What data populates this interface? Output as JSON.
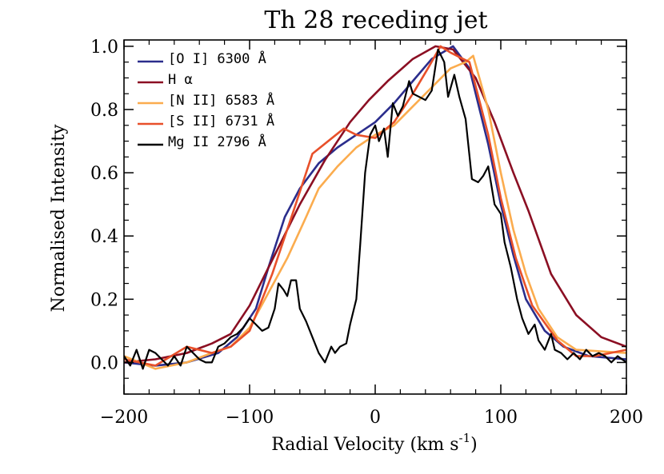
{
  "chart_data": {
    "type": "line",
    "title": "Th 28 receding jet",
    "xlabel": "Radial Velocity (km s",
    "xlabel_sup": "-1",
    "xlabel_close": ")",
    "ylabel": "Normalised Intensity",
    "xlim": [
      -200,
      200
    ],
    "ylim": [
      -0.1,
      1.02
    ],
    "xticks": [
      -200,
      -100,
      0,
      100,
      200
    ],
    "xtick_labels": [
      "−200",
      "−100",
      "0",
      "100",
      "200"
    ],
    "yticks": [
      0.0,
      0.2,
      0.4,
      0.6,
      0.8,
      1.0
    ],
    "ytick_labels": [
      "0.0",
      "0.2",
      "0.4",
      "0.6",
      "0.8",
      "1.0"
    ],
    "grid": false,
    "legend_position": "top-left",
    "series": [
      {
        "name": "[O I] 6300 Å",
        "color": "#2b2d8c",
        "points": [
          [
            -200,
            0.0
          ],
          [
            -175,
            -0.01
          ],
          [
            -150,
            0.0
          ],
          [
            -125,
            0.03
          ],
          [
            -110,
            0.08
          ],
          [
            -95,
            0.17
          ],
          [
            -85,
            0.3
          ],
          [
            -72,
            0.46
          ],
          [
            -60,
            0.55
          ],
          [
            -45,
            0.63
          ],
          [
            -30,
            0.68
          ],
          [
            -15,
            0.72
          ],
          [
            0,
            0.76
          ],
          [
            15,
            0.82
          ],
          [
            30,
            0.89
          ],
          [
            45,
            0.96
          ],
          [
            62,
            1.0
          ],
          [
            75,
            0.93
          ],
          [
            90,
            0.69
          ],
          [
            100,
            0.5
          ],
          [
            110,
            0.34
          ],
          [
            120,
            0.2
          ],
          [
            135,
            0.1
          ],
          [
            150,
            0.05
          ],
          [
            170,
            0.02
          ],
          [
            200,
            0.01
          ]
        ]
      },
      {
        "name": "H α",
        "color": "#8b0f23",
        "points": [
          [
            -200,
            0.0
          ],
          [
            -175,
            0.01
          ],
          [
            -150,
            0.03
          ],
          [
            -130,
            0.06
          ],
          [
            -115,
            0.09
          ],
          [
            -100,
            0.18
          ],
          [
            -80,
            0.34
          ],
          [
            -60,
            0.5
          ],
          [
            -40,
            0.64
          ],
          [
            -20,
            0.76
          ],
          [
            -5,
            0.83
          ],
          [
            10,
            0.89
          ],
          [
            30,
            0.96
          ],
          [
            48,
            1.0
          ],
          [
            62,
            0.99
          ],
          [
            80,
            0.9
          ],
          [
            95,
            0.76
          ],
          [
            110,
            0.6
          ],
          [
            122,
            0.48
          ],
          [
            140,
            0.28
          ],
          [
            160,
            0.15
          ],
          [
            180,
            0.08
          ],
          [
            200,
            0.05
          ]
        ]
      },
      {
        "name": "[N II] 6583 Å",
        "color": "#fbac4e",
        "points": [
          [
            -200,
            0.02
          ],
          [
            -175,
            -0.02
          ],
          [
            -150,
            0.0
          ],
          [
            -130,
            0.03
          ],
          [
            -115,
            0.05
          ],
          [
            -100,
            0.11
          ],
          [
            -85,
            0.22
          ],
          [
            -70,
            0.33
          ],
          [
            -55,
            0.46
          ],
          [
            -45,
            0.55
          ],
          [
            -30,
            0.62
          ],
          [
            -15,
            0.68
          ],
          [
            0,
            0.72
          ],
          [
            15,
            0.75
          ],
          [
            30,
            0.81
          ],
          [
            45,
            0.87
          ],
          [
            60,
            0.93
          ],
          [
            72,
            0.95
          ],
          [
            78,
            0.97
          ],
          [
            90,
            0.8
          ],
          [
            100,
            0.6
          ],
          [
            110,
            0.42
          ],
          [
            120,
            0.28
          ],
          [
            130,
            0.17
          ],
          [
            145,
            0.08
          ],
          [
            160,
            0.04
          ],
          [
            200,
            0.03
          ]
        ]
      },
      {
        "name": "[S II] 6731 Å",
        "color": "#e8502a",
        "points": [
          [
            -200,
            0.01
          ],
          [
            -175,
            -0.01
          ],
          [
            -150,
            0.05
          ],
          [
            -130,
            0.03
          ],
          [
            -115,
            0.05
          ],
          [
            -100,
            0.1
          ],
          [
            -82,
            0.28
          ],
          [
            -65,
            0.48
          ],
          [
            -50,
            0.66
          ],
          [
            -25,
            0.74
          ],
          [
            -15,
            0.72
          ],
          [
            0,
            0.71
          ],
          [
            15,
            0.76
          ],
          [
            30,
            0.85
          ],
          [
            42,
            0.93
          ],
          [
            52,
            1.0
          ],
          [
            60,
            0.98
          ],
          [
            75,
            0.95
          ],
          [
            90,
            0.72
          ],
          [
            100,
            0.52
          ],
          [
            112,
            0.33
          ],
          [
            125,
            0.18
          ],
          [
            145,
            0.07
          ],
          [
            160,
            0.02
          ],
          [
            175,
            0.02
          ],
          [
            200,
            0.04
          ]
        ]
      },
      {
        "name": "Mg II 2796 Å",
        "color": "#000000",
        "points": [
          [
            -200,
            0.02
          ],
          [
            -195,
            -0.01
          ],
          [
            -190,
            0.04
          ],
          [
            -185,
            -0.02
          ],
          [
            -180,
            0.04
          ],
          [
            -175,
            0.03
          ],
          [
            -170,
            0.01
          ],
          [
            -165,
            -0.01
          ],
          [
            -160,
            0.02
          ],
          [
            -155,
            -0.01
          ],
          [
            -150,
            0.05
          ],
          [
            -145,
            0.03
          ],
          [
            -140,
            0.01
          ],
          [
            -135,
            0.0
          ],
          [
            -130,
            0.0
          ],
          [
            -125,
            0.05
          ],
          [
            -120,
            0.06
          ],
          [
            -115,
            0.08
          ],
          [
            -110,
            0.09
          ],
          [
            -105,
            0.11
          ],
          [
            -100,
            0.14
          ],
          [
            -95,
            0.12
          ],
          [
            -90,
            0.1
          ],
          [
            -85,
            0.11
          ],
          [
            -80,
            0.17
          ],
          [
            -77,
            0.25
          ],
          [
            -73,
            0.23
          ],
          [
            -70,
            0.21
          ],
          [
            -67,
            0.26
          ],
          [
            -63,
            0.26
          ],
          [
            -60,
            0.17
          ],
          [
            -55,
            0.13
          ],
          [
            -50,
            0.08
          ],
          [
            -45,
            0.03
          ],
          [
            -40,
            0.0
          ],
          [
            -35,
            0.05
          ],
          [
            -32,
            0.03
          ],
          [
            -28,
            0.05
          ],
          [
            -23,
            0.06
          ],
          [
            -20,
            0.12
          ],
          [
            -15,
            0.2
          ],
          [
            -12,
            0.37
          ],
          [
            -8,
            0.6
          ],
          [
            -4,
            0.72
          ],
          [
            0,
            0.75
          ],
          [
            3,
            0.7
          ],
          [
            7,
            0.74
          ],
          [
            10,
            0.65
          ],
          [
            14,
            0.82
          ],
          [
            18,
            0.78
          ],
          [
            22,
            0.81
          ],
          [
            27,
            0.89
          ],
          [
            30,
            0.85
          ],
          [
            35,
            0.84
          ],
          [
            40,
            0.83
          ],
          [
            45,
            0.86
          ],
          [
            50,
            0.99
          ],
          [
            55,
            0.95
          ],
          [
            58,
            0.84
          ],
          [
            63,
            0.91
          ],
          [
            67,
            0.84
          ],
          [
            72,
            0.77
          ],
          [
            77,
            0.58
          ],
          [
            82,
            0.57
          ],
          [
            86,
            0.59
          ],
          [
            90,
            0.62
          ],
          [
            95,
            0.5
          ],
          [
            100,
            0.47
          ],
          [
            103,
            0.38
          ],
          [
            108,
            0.3
          ],
          [
            113,
            0.2
          ],
          [
            117,
            0.14
          ],
          [
            122,
            0.09
          ],
          [
            127,
            0.12
          ],
          [
            130,
            0.07
          ],
          [
            135,
            0.04
          ],
          [
            140,
            0.09
          ],
          [
            143,
            0.04
          ],
          [
            148,
            0.03
          ],
          [
            153,
            0.01
          ],
          [
            158,
            0.03
          ],
          [
            163,
            0.01
          ],
          [
            168,
            0.04
          ],
          [
            173,
            0.02
          ],
          [
            178,
            0.03
          ],
          [
            183,
            0.02
          ],
          [
            188,
            0.0
          ],
          [
            193,
            0.02
          ],
          [
            200,
            0.0
          ]
        ]
      }
    ]
  }
}
